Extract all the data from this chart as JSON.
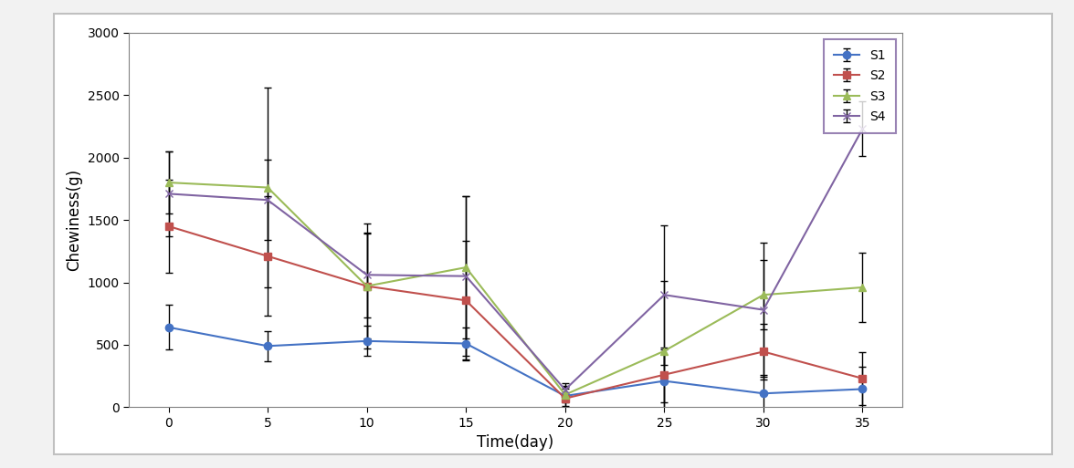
{
  "x": [
    0,
    5,
    10,
    15,
    20,
    25,
    30,
    35
  ],
  "S1": [
    640,
    490,
    530,
    510,
    90,
    210,
    110,
    145
  ],
  "S2": [
    1450,
    1210,
    970,
    855,
    70,
    260,
    445,
    230
  ],
  "S3": [
    1800,
    1760,
    970,
    1120,
    100,
    450,
    900,
    960
  ],
  "S4": [
    1710,
    1660,
    1060,
    1050,
    140,
    900,
    780,
    2230
  ],
  "S1_err": [
    180,
    120,
    120,
    130,
    80,
    250,
    150,
    180
  ],
  "S2_err": [
    370,
    480,
    420,
    480,
    80,
    220,
    220,
    210
  ],
  "S3_err": [
    250,
    800,
    500,
    570,
    60,
    560,
    280,
    280
  ],
  "S4_err": [
    340,
    320,
    340,
    640,
    50,
    560,
    540,
    220
  ],
  "colors": {
    "S1": "#4472C4",
    "S2": "#C0504D",
    "S3": "#9BBB59",
    "S4": "#8064A2"
  },
  "markers": {
    "S1": "o",
    "S2": "s",
    "S3": "^",
    "S4": "x"
  },
  "xlabel": "Time(day)",
  "ylabel": "Chewiness(g)",
  "ylim": [
    0,
    3000
  ],
  "yticks": [
    0,
    500,
    1000,
    1500,
    2000,
    2500,
    3000
  ],
  "xticks": [
    0,
    5,
    10,
    15,
    20,
    25,
    30,
    35
  ],
  "legend_loc": "upper right",
  "outer_bg": "#F2F2F2",
  "plot_bg_color": "#FFFFFF",
  "capsize": 3,
  "linewidth": 1.5,
  "markersize": 6
}
